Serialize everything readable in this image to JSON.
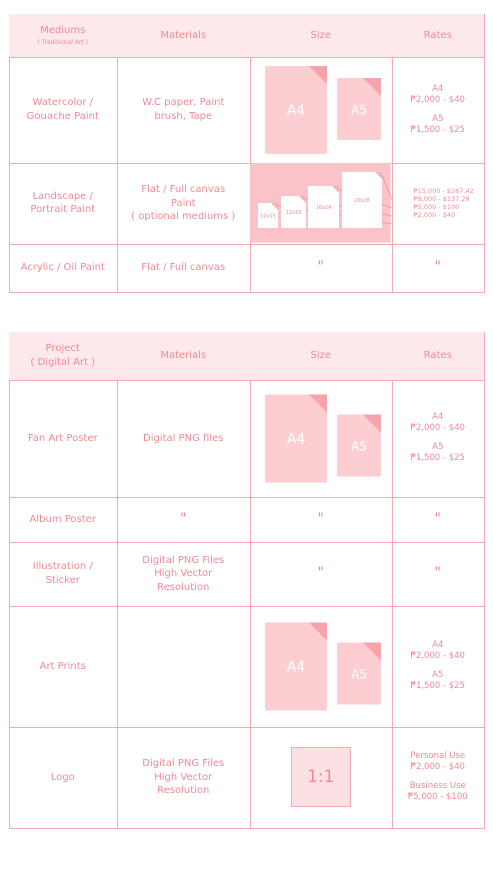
{
  "tables": [
    {
      "columns": [
        {
          "lines": [
            "Mediums"
          ],
          "sub": "( Traditional Art )"
        },
        {
          "lines": [
            "Materials"
          ]
        },
        {
          "lines": [
            "Size"
          ]
        },
        {
          "lines": [
            "Rates"
          ]
        }
      ],
      "rows": [
        [
          {
            "lines": [
              "Watercolor /",
              "Gouache Paint"
            ]
          },
          {
            "lines": [
              "W.C paper, Paint",
              "brush, Tape"
            ]
          },
          {
            "paper": [
              "A4",
              "A5"
            ]
          },
          {
            "groups": [
              {
                "lines": [
                  "A4",
                  "₱2,000 - $40"
                ]
              },
              {
                "lines": [
                  "A5",
                  "₱1,500 - $25"
                ]
              }
            ]
          }
        ],
        [
          {
            "lines": [
              "Landscape /",
              "Portrait Paint"
            ]
          },
          {
            "lines": [
              "Flat / Full canvas",
              "Paint",
              "( optional mediums )"
            ]
          },
          {
            "canvas": [
              "10x15",
              "12x18",
              "16x24",
              "20x28"
            ]
          },
          {
            "leaders": [
              "₱15,000 - $267.42",
              "₱9,000 - $137.29",
              "₱5,000 - $100",
              "₱2,000 - $40"
            ]
          }
        ],
        [
          {
            "lines": [
              "Acrylic / Oil Paint"
            ]
          },
          {
            "lines": [
              "Flat / Full canvas"
            ]
          },
          {
            "ditto": "\""
          },
          {
            "ditto": "\""
          }
        ]
      ]
    },
    {
      "columns": [
        {
          "lines": [
            "Project",
            "( Digital Art )"
          ]
        },
        {
          "lines": [
            "Materials"
          ]
        },
        {
          "lines": [
            "Size"
          ]
        },
        {
          "lines": [
            "Rates"
          ]
        }
      ],
      "rows": [
        [
          {
            "lines": [
              "Fan Art Poster"
            ]
          },
          {
            "lines": [
              "Digital PNG files"
            ]
          },
          {
            "paper": [
              "A4",
              "A5"
            ]
          },
          {
            "groups": [
              {
                "lines": [
                  "A4",
                  "₱2,000 - $40"
                ]
              },
              {
                "lines": [
                  "A5",
                  "₱1,500 - $25"
                ]
              }
            ]
          }
        ],
        [
          {
            "lines": [
              "Album Poster"
            ]
          },
          {
            "ditto": "\""
          },
          {
            "ditto": "\""
          },
          {
            "ditto": "\""
          }
        ],
        [
          {
            "lines": [
              "Illustration /",
              "Sticker"
            ]
          },
          {
            "lines": [
              "Digital PNG Files",
              "High Vector",
              "Resolution"
            ]
          },
          {
            "ditto": "\""
          },
          {
            "ditto": "\""
          }
        ],
        [
          {
            "lines": [
              "Art Prints"
            ]
          },
          {
            "lines": []
          },
          {
            "paper": [
              "A4",
              "A5"
            ]
          },
          {
            "groups": [
              {
                "lines": [
                  "A4",
                  "₱2,000 - $40"
                ]
              },
              {
                "lines": [
                  "A5",
                  "₱1,500 - $25"
                ]
              }
            ]
          }
        ],
        [
          {
            "lines": [
              "Logo"
            ]
          },
          {
            "lines": [
              "Digital PNG Files",
              "High Vector",
              "Resolution"
            ]
          },
          {
            "box": "1:1"
          },
          {
            "groups": [
              {
                "lines": [
                  "Personal Use",
                  "₱2,000 - $40"
                ]
              },
              {
                "lines": [
                  "Business Use",
                  "₱5,000 - $100"
                ]
              }
            ]
          }
        ]
      ]
    }
  ]
}
